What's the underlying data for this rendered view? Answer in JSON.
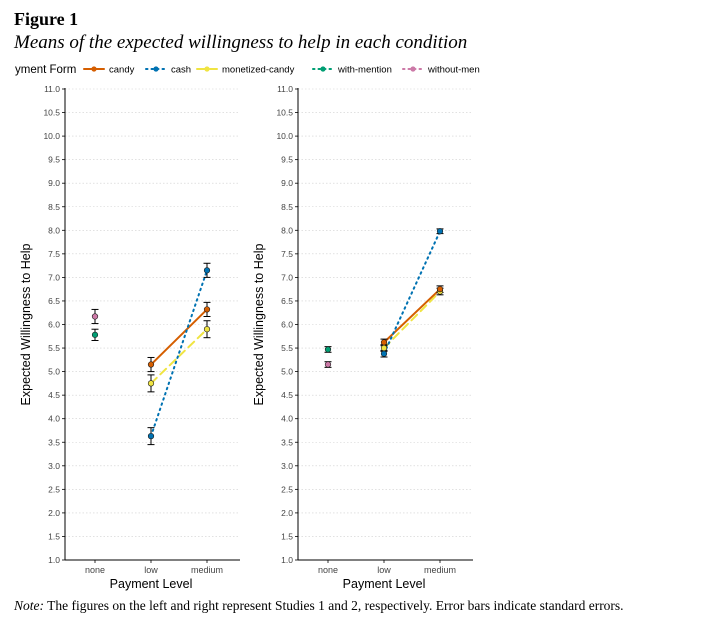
{
  "figure": {
    "label": "Figure 1",
    "title": "Means of the expected willingness to help in each condition",
    "note_prefix": "Note:",
    "note_text": " The figures on the left and right represent Studies 1 and 2, respectively. Error bars indicate standard errors."
  },
  "legend": {
    "title": "yment Form",
    "entries": [
      {
        "name": "candy",
        "color": "#d55e00",
        "style": "solid"
      },
      {
        "name": "cash",
        "color": "#0072b2",
        "style": "dotted"
      },
      {
        "name": "monetized-candy",
        "color": "#f0e442",
        "style": "dashed"
      },
      {
        "name": "with-mention",
        "color": "#009e73",
        "style": "dotted"
      },
      {
        "name": "without-men",
        "color": "#cc79a7",
        "style": "dotted"
      }
    ]
  },
  "chart_data": [
    {
      "type": "line",
      "panel": "Study 1",
      "title": "",
      "xlabel": "Payment Level",
      "ylabel": "Expected Willingness to Help",
      "categories": [
        "none",
        "low",
        "medium"
      ],
      "ylim": [
        1.0,
        11.0
      ],
      "yticks": [
        "1.0",
        "1.5",
        "2.0",
        "2.5",
        "3.0",
        "3.5",
        "4.0",
        "4.5",
        "5.0",
        "5.5",
        "6.0",
        "6.5",
        "7.0",
        "7.5",
        "8.0",
        "8.5",
        "9.0",
        "9.5",
        "10.0",
        "10.5",
        "11.0"
      ],
      "grid": true,
      "series": [
        {
          "name": "candy",
          "x": [
            "low",
            "medium"
          ],
          "values": [
            5.15,
            6.32
          ],
          "se": [
            0.15,
            0.15
          ]
        },
        {
          "name": "cash",
          "x": [
            "low",
            "medium"
          ],
          "values": [
            3.63,
            7.15
          ],
          "se": [
            0.18,
            0.15
          ]
        },
        {
          "name": "monetized-candy",
          "x": [
            "low",
            "medium"
          ],
          "values": [
            4.75,
            5.9
          ],
          "se": [
            0.18,
            0.18
          ]
        },
        {
          "name": "with-mention",
          "x": [
            "none"
          ],
          "values": [
            5.78
          ],
          "se": [
            0.12
          ]
        },
        {
          "name": "without-men",
          "x": [
            "none"
          ],
          "values": [
            6.17
          ],
          "se": [
            0.15
          ]
        }
      ]
    },
    {
      "type": "line",
      "panel": "Study 2",
      "title": "",
      "xlabel": "Payment Level",
      "ylabel": "Expected Willingness to Help",
      "categories": [
        "none",
        "low",
        "medium"
      ],
      "ylim": [
        1.0,
        11.0
      ],
      "yticks": [
        "1.0",
        "1.5",
        "2.0",
        "2.5",
        "3.0",
        "3.5",
        "4.0",
        "4.5",
        "5.0",
        "5.5",
        "6.0",
        "6.5",
        "7.0",
        "7.5",
        "8.0",
        "8.5",
        "9.0",
        "9.5",
        "10.0",
        "10.5",
        "11.0"
      ],
      "grid": true,
      "series": [
        {
          "name": "candy",
          "x": [
            "low",
            "medium"
          ],
          "values": [
            5.62,
            6.75
          ],
          "se": [
            0.07,
            0.07
          ]
        },
        {
          "name": "cash",
          "x": [
            "low",
            "medium"
          ],
          "values": [
            5.38,
            7.98
          ],
          "se": [
            0.07,
            0.05
          ]
        },
        {
          "name": "monetized-candy",
          "x": [
            "low",
            "medium"
          ],
          "values": [
            5.5,
            6.7
          ],
          "se": [
            0.07,
            0.07
          ]
        },
        {
          "name": "with-mention",
          "x": [
            "none"
          ],
          "values": [
            5.47
          ],
          "se": [
            0.06
          ]
        },
        {
          "name": "without-men",
          "x": [
            "none"
          ],
          "values": [
            5.15
          ],
          "se": [
            0.06
          ]
        }
      ]
    }
  ]
}
